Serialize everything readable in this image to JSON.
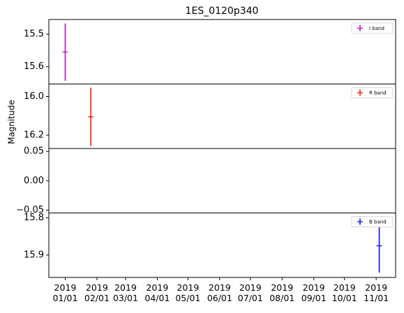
{
  "chart_data": {
    "type": "errorbar",
    "title": "1ES_0120p340",
    "ylabel": "Magnitude",
    "xlim": [
      "2018-12-16",
      "2019-11-20"
    ],
    "xticks": [
      {
        "value": "2019-01-01",
        "label": "2019\n01/01"
      },
      {
        "value": "2019-02-01",
        "label": "2019\n02/01"
      },
      {
        "value": "2019-03-01",
        "label": "2019\n03/01"
      },
      {
        "value": "2019-04-01",
        "label": "2019\n04/01"
      },
      {
        "value": "2019-05-01",
        "label": "2019\n05/01"
      },
      {
        "value": "2019-06-01",
        "label": "2019\n06/01"
      },
      {
        "value": "2019-07-01",
        "label": "2019\n07/01"
      },
      {
        "value": "2019-08-01",
        "label": "2019\n08/01"
      },
      {
        "value": "2019-09-01",
        "label": "2019\n09/01"
      },
      {
        "value": "2019-10-01",
        "label": "2019\n10/01"
      },
      {
        "value": "2019-11-01",
        "label": "2019\n11/01"
      }
    ],
    "panels": [
      {
        "ylim": [
          15.653,
          15.455
        ],
        "yticks": [
          15.5,
          15.6
        ],
        "legend": "upper right",
        "series": [
          {
            "name": "I band",
            "color": "#bf00bf",
            "x": [
              "2019-01-01"
            ],
            "values": [
              15.555
            ],
            "errors": [
              0.088
            ]
          }
        ]
      },
      {
        "ylim": [
          16.269,
          15.935
        ],
        "yticks": [
          {
            "value": 16,
            "label": "16.0"
          },
          16.2
        ],
        "legend": "upper right",
        "series": [
          {
            "name": "R band",
            "color": "#ff0000",
            "x": [
              "2019-01-26"
            ],
            "values": [
              16.105
            ],
            "errors": [
              0.151
            ]
          }
        ]
      },
      {
        "ylim": [
          -0.055,
          0.055
        ],
        "yticks": [
          {
            "value": -0.05,
            "label": "−0.05"
          },
          {
            "value": 0,
            "label": "0.00"
          },
          0.05
        ],
        "series": []
      },
      {
        "ylim": [
          15.96,
          15.787
        ],
        "yticks": [
          15.8,
          15.9
        ],
        "legend": "upper right",
        "series": [
          {
            "name": "B band",
            "color": "#0000ff",
            "x": [
              "2019-11-04"
            ],
            "values": [
              15.875
            ],
            "errors": [
              0.072
            ]
          }
        ]
      }
    ]
  }
}
